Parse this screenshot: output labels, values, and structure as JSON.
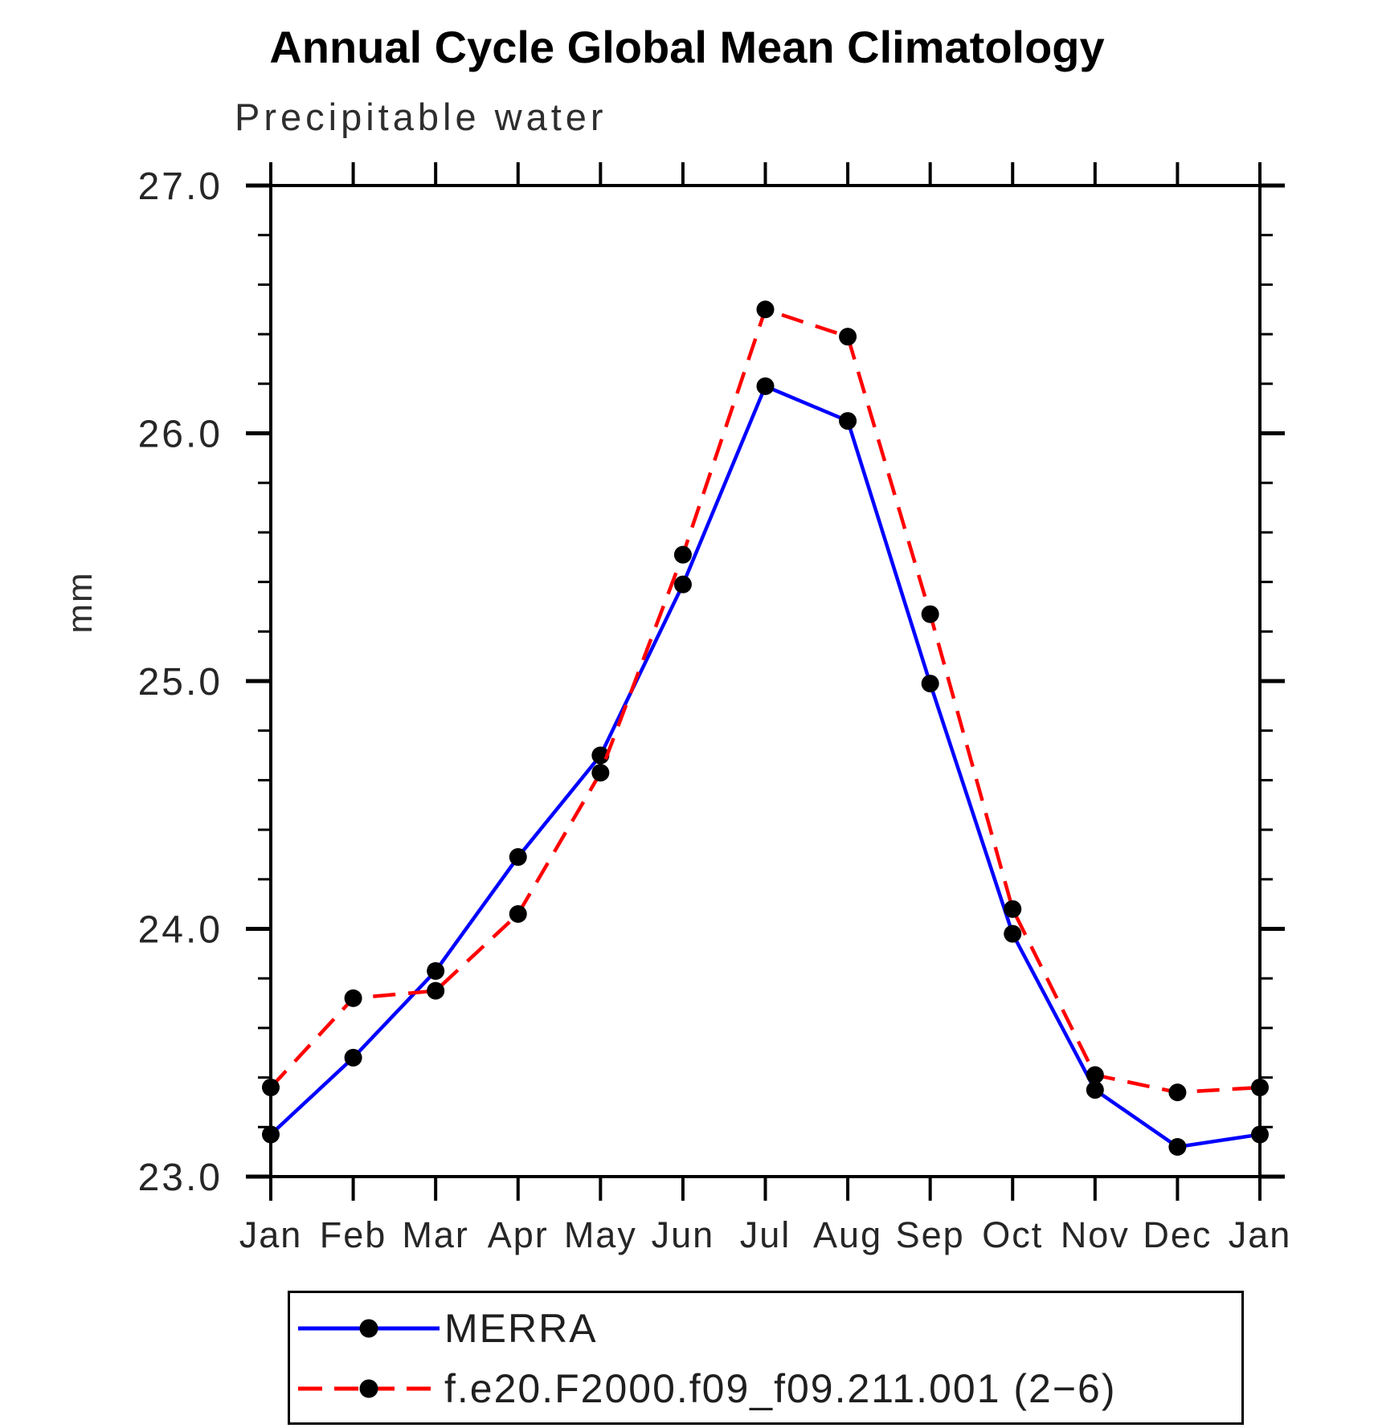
{
  "page": {
    "background": "#ffffff",
    "axis_color": "#000000",
    "text_color": "#262626"
  },
  "chart_data": {
    "type": "line",
    "title": "Annual Cycle Global Mean Climatology",
    "subtitle": "Precipitable water",
    "ylabel": "mm",
    "xlabel": "",
    "categories": [
      "Jan",
      "Feb",
      "Mar",
      "Apr",
      "May",
      "Jun",
      "Jul",
      "Aug",
      "Sep",
      "Oct",
      "Nov",
      "Dec",
      "Jan"
    ],
    "ylim": [
      23.0,
      27.0
    ],
    "ytick_values": [
      23.0,
      24.0,
      25.0,
      26.0,
      27.0
    ],
    "ytick_labels": [
      "23.0",
      "24.0",
      "25.0",
      "26.0",
      "27.0"
    ],
    "minor_tick_step": 0.2,
    "grid": false,
    "legend_position": "bottom",
    "marker_color": "#000000",
    "series": [
      {
        "name": "MERRA",
        "color": "#0000FF",
        "style": "solid",
        "marker": "black-dot",
        "values": [
          23.17,
          23.48,
          23.83,
          24.29,
          24.7,
          25.39,
          26.19,
          26.05,
          24.99,
          23.98,
          23.35,
          23.12,
          23.17
        ]
      },
      {
        "name": "f.e20.F2000.f09_f09.211.001 (2−6)",
        "color": "#FF0000",
        "style": "dashed",
        "marker": "black-dot",
        "values": [
          23.36,
          23.72,
          23.75,
          24.06,
          24.63,
          25.51,
          26.5,
          26.39,
          25.27,
          24.08,
          23.41,
          23.34,
          23.36
        ]
      }
    ]
  }
}
